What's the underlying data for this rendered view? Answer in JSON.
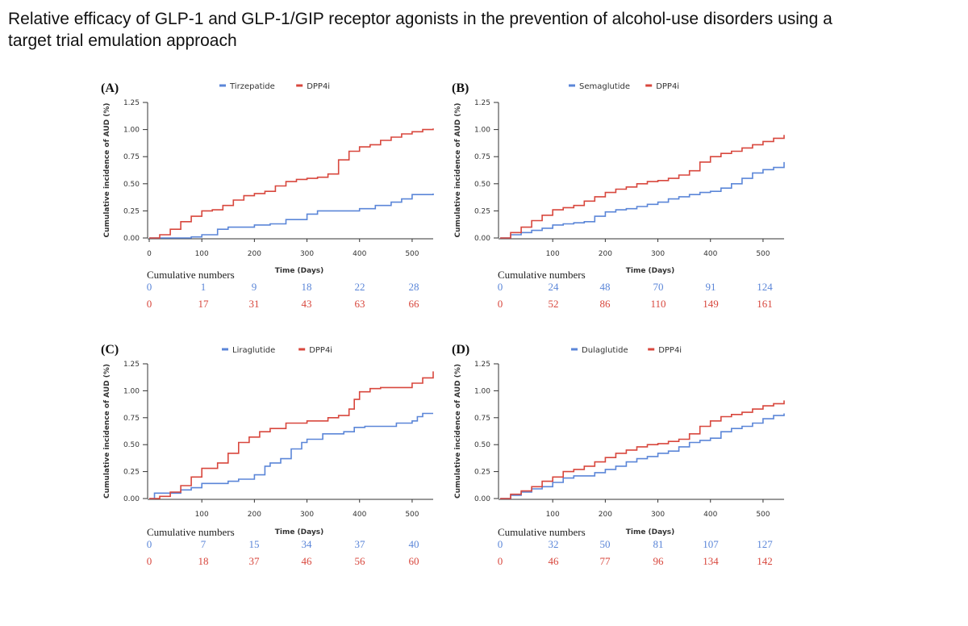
{
  "title": {
    "line1": "Relative efficacy of GLP-1 and GLP-1/GIP receptor agonists in the prevention of alcohol-use disorders using a",
    "line2": "target trial emulation approach"
  },
  "colors": {
    "blue": "#5b86d8",
    "red": "#d8473d",
    "axis": "#333333"
  },
  "chart_data": [
    {
      "type": "line",
      "panel": "(A)",
      "ylabel": "Cumulative incidence of AUD (%)",
      "xlabel": "Time (Days)",
      "xlim": [
        0,
        540
      ],
      "ylim": [
        0,
        1.25
      ],
      "xticks": [
        0,
        100,
        200,
        300,
        400,
        500
      ],
      "xtick_labels": [
        "0",
        "100",
        "200",
        "300",
        "400",
        "500"
      ],
      "yticks": [
        0,
        0.25,
        0.5,
        0.75,
        1.0,
        1.25
      ],
      "ytick_labels": [
        "0.00",
        "0.25",
        "0.50",
        "0.75",
        "1.00",
        "1.25"
      ],
      "series": [
        {
          "name": "Tirzepatide",
          "color": "#5b86d8",
          "x": [
            0,
            80,
            100,
            130,
            150,
            200,
            230,
            260,
            300,
            320,
            380,
            400,
            430,
            460,
            480,
            500,
            540
          ],
          "y": [
            0,
            0.01,
            0.03,
            0.08,
            0.1,
            0.12,
            0.13,
            0.17,
            0.22,
            0.25,
            0.25,
            0.27,
            0.3,
            0.33,
            0.36,
            0.4,
            0.41
          ]
        },
        {
          "name": "DPP4i",
          "color": "#d8473d",
          "x": [
            0,
            20,
            40,
            60,
            80,
            100,
            120,
            140,
            160,
            180,
            200,
            220,
            240,
            260,
            280,
            300,
            320,
            340,
            360,
            380,
            400,
            420,
            440,
            460,
            480,
            500,
            520,
            540
          ],
          "y": [
            0,
            0.03,
            0.08,
            0.15,
            0.2,
            0.25,
            0.26,
            0.3,
            0.35,
            0.39,
            0.41,
            0.43,
            0.48,
            0.52,
            0.54,
            0.55,
            0.56,
            0.59,
            0.72,
            0.8,
            0.84,
            0.86,
            0.9,
            0.93,
            0.96,
            0.98,
            1.0,
            1.01
          ]
        }
      ],
      "table_label": "Cumulative numbers",
      "table_x": [
        0,
        100,
        200,
        300,
        400,
        500
      ],
      "table": [
        {
          "name": "Tirzepatide",
          "values": [
            "0",
            "1",
            "9",
            "18",
            "22",
            "28"
          ]
        },
        {
          "name": "DPP4i",
          "values": [
            "0",
            "17",
            "31",
            "43",
            "63",
            "66"
          ]
        }
      ]
    },
    {
      "type": "line",
      "panel": "(B)",
      "ylabel": "Cumulative incidence of AUD (%)",
      "xlabel": "Time (Days)",
      "xlim": [
        0,
        540
      ],
      "ylim": [
        0,
        1.25
      ],
      "xticks": [
        100,
        200,
        300,
        400,
        500
      ],
      "xtick_labels": [
        "100",
        "200",
        "300",
        "400",
        "500"
      ],
      "yticks": [
        0,
        0.25,
        0.5,
        0.75,
        1.0,
        1.25
      ],
      "ytick_labels": [
        "0.00",
        "0.25",
        "0.50",
        "0.75",
        "1.00",
        "1.25"
      ],
      "series": [
        {
          "name": "Semaglutide",
          "color": "#5b86d8",
          "x": [
            0,
            20,
            40,
            60,
            80,
            100,
            120,
            140,
            160,
            180,
            200,
            220,
            240,
            260,
            280,
            300,
            320,
            340,
            360,
            380,
            400,
            420,
            440,
            460,
            480,
            500,
            520,
            530,
            540
          ],
          "y": [
            0,
            0.03,
            0.05,
            0.07,
            0.09,
            0.12,
            0.13,
            0.14,
            0.15,
            0.2,
            0.24,
            0.26,
            0.27,
            0.29,
            0.31,
            0.33,
            0.36,
            0.38,
            0.4,
            0.42,
            0.43,
            0.46,
            0.5,
            0.55,
            0.6,
            0.63,
            0.65,
            0.65,
            0.7
          ]
        },
        {
          "name": "DPP4i",
          "color": "#d8473d",
          "x": [
            0,
            20,
            40,
            60,
            80,
            100,
            120,
            140,
            160,
            180,
            200,
            220,
            240,
            260,
            280,
            300,
            320,
            340,
            360,
            380,
            400,
            420,
            440,
            460,
            480,
            500,
            520,
            540
          ],
          "y": [
            0,
            0.05,
            0.1,
            0.16,
            0.21,
            0.26,
            0.28,
            0.3,
            0.34,
            0.38,
            0.42,
            0.45,
            0.47,
            0.5,
            0.52,
            0.53,
            0.55,
            0.58,
            0.62,
            0.7,
            0.75,
            0.78,
            0.8,
            0.83,
            0.86,
            0.89,
            0.92,
            0.95
          ]
        }
      ],
      "table_label": "Cumulative numbers",
      "table_x": [
        0,
        100,
        200,
        300,
        400,
        500
      ],
      "table": [
        {
          "name": "Semaglutide",
          "values": [
            "0",
            "24",
            "48",
            "70",
            "91",
            "124"
          ]
        },
        {
          "name": "DPP4i",
          "values": [
            "0",
            "52",
            "86",
            "110",
            "149",
            "161"
          ]
        }
      ]
    },
    {
      "type": "line",
      "panel": "(C)",
      "ylabel": "Cumulative incidence of AUD (%)",
      "xlabel": "Time (Days)",
      "xlim": [
        0,
        540
      ],
      "ylim": [
        0,
        1.25
      ],
      "xticks": [
        100,
        200,
        300,
        400,
        500
      ],
      "xtick_labels": [
        "100",
        "200",
        "300",
        "400",
        "500"
      ],
      "yticks": [
        0,
        0.25,
        0.5,
        0.75,
        1.0,
        1.25
      ],
      "ytick_labels": [
        "0.00",
        "0.25",
        "0.50",
        "0.75",
        "1.00",
        "1.25"
      ],
      "series": [
        {
          "name": "Liraglutide",
          "color": "#5b86d8",
          "x": [
            0,
            10,
            50,
            60,
            80,
            100,
            150,
            170,
            200,
            220,
            230,
            250,
            270,
            290,
            300,
            330,
            370,
            390,
            410,
            460,
            470,
            500,
            510,
            520,
            540
          ],
          "y": [
            0,
            0.05,
            0.05,
            0.08,
            0.1,
            0.14,
            0.16,
            0.18,
            0.22,
            0.3,
            0.33,
            0.37,
            0.46,
            0.52,
            0.55,
            0.6,
            0.62,
            0.66,
            0.67,
            0.67,
            0.7,
            0.72,
            0.76,
            0.79,
            0.79
          ]
        },
        {
          "name": "DPP4i",
          "color": "#d8473d",
          "x": [
            0,
            20,
            40,
            60,
            80,
            100,
            130,
            150,
            170,
            190,
            210,
            230,
            260,
            300,
            340,
            360,
            380,
            390,
            400,
            420,
            440,
            480,
            500,
            520,
            540
          ],
          "y": [
            0,
            0.02,
            0.06,
            0.12,
            0.2,
            0.28,
            0.33,
            0.42,
            0.52,
            0.57,
            0.62,
            0.65,
            0.7,
            0.72,
            0.75,
            0.77,
            0.83,
            0.92,
            0.99,
            1.02,
            1.03,
            1.03,
            1.07,
            1.12,
            1.18
          ]
        }
      ],
      "table_label": "Cumulative numbers",
      "table_x": [
        0,
        100,
        200,
        300,
        400,
        500
      ],
      "table": [
        {
          "name": "Liraglutide",
          "values": [
            "0",
            "7",
            "15",
            "34",
            "37",
            "40"
          ]
        },
        {
          "name": "DPP4i",
          "values": [
            "0",
            "18",
            "37",
            "46",
            "56",
            "60"
          ]
        }
      ]
    },
    {
      "type": "line",
      "panel": "(D)",
      "ylabel": "Cumulative incidence of AUD (%)",
      "xlabel": "Time (Days)",
      "xlim": [
        0,
        540
      ],
      "ylim": [
        0,
        1.25
      ],
      "xticks": [
        100,
        200,
        300,
        400,
        500
      ],
      "xtick_labels": [
        "100",
        "200",
        "300",
        "400",
        "500"
      ],
      "yticks": [
        0,
        0.25,
        0.5,
        0.75,
        1.0,
        1.25
      ],
      "ytick_labels": [
        "0.00",
        "0.25",
        "0.50",
        "0.75",
        "1.00",
        "1.25"
      ],
      "series": [
        {
          "name": "Dulaglutide",
          "color": "#5b86d8",
          "x": [
            0,
            20,
            40,
            60,
            80,
            100,
            120,
            140,
            160,
            180,
            200,
            220,
            240,
            260,
            280,
            300,
            320,
            340,
            360,
            380,
            400,
            420,
            440,
            460,
            480,
            500,
            520,
            540
          ],
          "y": [
            0,
            0.03,
            0.06,
            0.09,
            0.11,
            0.15,
            0.19,
            0.21,
            0.21,
            0.24,
            0.27,
            0.3,
            0.34,
            0.37,
            0.39,
            0.42,
            0.44,
            0.48,
            0.52,
            0.54,
            0.56,
            0.62,
            0.65,
            0.67,
            0.7,
            0.74,
            0.77,
            0.79
          ]
        },
        {
          "name": "DPP4i",
          "color": "#d8473d",
          "x": [
            0,
            20,
            40,
            60,
            80,
            100,
            120,
            140,
            160,
            180,
            200,
            220,
            240,
            260,
            280,
            300,
            320,
            340,
            360,
            380,
            400,
            420,
            440,
            460,
            480,
            500,
            520,
            540
          ],
          "y": [
            0,
            0.04,
            0.07,
            0.11,
            0.16,
            0.2,
            0.25,
            0.27,
            0.3,
            0.34,
            0.38,
            0.42,
            0.45,
            0.48,
            0.5,
            0.51,
            0.53,
            0.55,
            0.6,
            0.67,
            0.72,
            0.76,
            0.78,
            0.8,
            0.83,
            0.86,
            0.88,
            0.91
          ]
        }
      ],
      "table_label": "Cumulative numbers",
      "table_x": [
        0,
        100,
        200,
        300,
        400,
        500
      ],
      "table": [
        {
          "name": "Dulaglutide",
          "values": [
            "0",
            "32",
            "50",
            "81",
            "107",
            "127"
          ]
        },
        {
          "name": "DPP4i",
          "values": [
            "0",
            "46",
            "77",
            "96",
            "134",
            "142"
          ]
        }
      ]
    }
  ]
}
